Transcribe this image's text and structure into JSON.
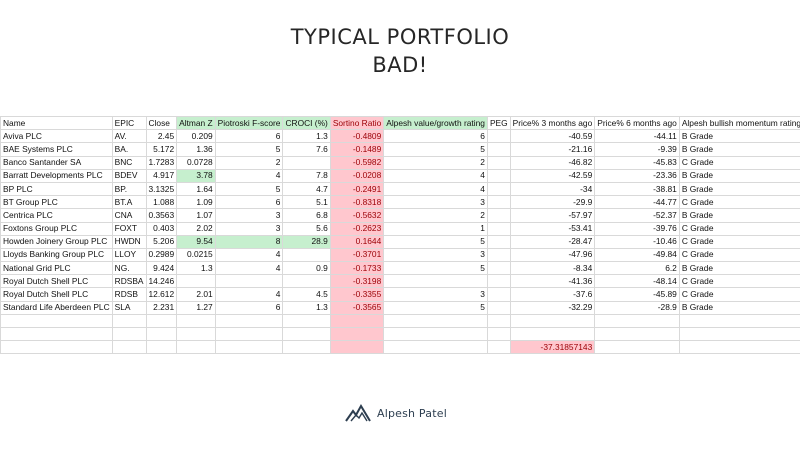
{
  "title": "TYPICAL PORTFOLIO",
  "subtitle": "BAD!",
  "headers": [
    "Name",
    "EPIC",
    "Close",
    "Altman Z",
    "Piotroski F-score",
    "CROCI (%)",
    "Sortino Ratio",
    "Alpesh value/growth rating",
    "PEG",
    "Price% 3 months ago",
    "Price% 6 months ago",
    "Alpesh bullish momentum rating"
  ],
  "rows": [
    [
      "Aviva PLC",
      "AV.",
      "2.45",
      "0.209",
      "6",
      "1.3",
      "-0.4809",
      "6",
      "",
      "-40.59",
      "-44.11",
      "B Grade"
    ],
    [
      "BAE Systems PLC",
      "BA.",
      "5.172",
      "1.36",
      "5",
      "7.6",
      "-0.1489",
      "5",
      "",
      "-21.16",
      "-9.39",
      "B Grade"
    ],
    [
      "Banco Santander SA",
      "BNC",
      "1.7283",
      "0.0728",
      "2",
      "",
      "-0.5982",
      "2",
      "",
      "-46.82",
      "-45.83",
      "C Grade"
    ],
    [
      "Barratt Developments PLC",
      "BDEV",
      "4.917",
      "3.78",
      "4",
      "7.8",
      "-0.0208",
      "4",
      "",
      "-42.59",
      "-23.36",
      "B Grade"
    ],
    [
      "BP PLC",
      "BP.",
      "3.1325",
      "1.64",
      "5",
      "4.7",
      "-0.2491",
      "4",
      "",
      "-34",
      "-38.81",
      "B Grade"
    ],
    [
      "BT Group PLC",
      "BT.A",
      "1.088",
      "1.09",
      "6",
      "5.1",
      "-0.8318",
      "3",
      "",
      "-29.9",
      "-44.77",
      "C Grade"
    ],
    [
      "Centrica PLC",
      "CNA",
      "0.3563",
      "1.07",
      "3",
      "6.8",
      "-0.5632",
      "2",
      "",
      "-57.97",
      "-52.37",
      "B Grade"
    ],
    [
      "Foxtons Group PLC",
      "FOXT",
      "0.403",
      "2.02",
      "3",
      "5.6",
      "-0.2623",
      "1",
      "",
      "-53.41",
      "-39.76",
      "C Grade"
    ],
    [
      "Howden Joinery Group PLC",
      "HWDN",
      "5.206",
      "9.54",
      "8",
      "28.9",
      "0.1644",
      "5",
      "",
      "-28.47",
      "-10.46",
      "C Grade"
    ],
    [
      "Lloyds Banking Group PLC",
      "LLOY",
      "0.2989",
      "0.0215",
      "4",
      "",
      "-0.3701",
      "3",
      "",
      "-47.96",
      "-49.84",
      "C Grade"
    ],
    [
      "National Grid PLC",
      "NG.",
      "9.424",
      "1.3",
      "4",
      "0.9",
      "-0.1733",
      "5",
      "",
      "-8.34",
      "6.2",
      "B Grade"
    ],
    [
      "Royal Dutch Shell PLC",
      "RDSBA",
      "14.246",
      "",
      "",
      "",
      "-0.3198",
      "",
      "",
      "-41.36",
      "-48.14",
      "C Grade"
    ],
    [
      "Royal Dutch Shell PLC",
      "RDSB",
      "12.612",
      "2.01",
      "4",
      "4.5",
      "-0.3355",
      "3",
      "",
      "-37.6",
      "-45.89",
      "C Grade"
    ],
    [
      "Standard Life Aberdeen PLC",
      "SLA",
      "2.231",
      "1.27",
      "6",
      "1.3",
      "-0.3565",
      "5",
      "",
      "-32.29",
      "-28.9",
      "B Grade"
    ]
  ],
  "green_header_cols": [
    3,
    4,
    5,
    7
  ],
  "red_header_cols": [
    6
  ],
  "green_cells": [
    [
      3,
      3
    ],
    [
      8,
      3
    ],
    [
      8,
      4
    ],
    [
      8,
      5
    ]
  ],
  "summary_value": "-37.31857143",
  "logo_text": "Alpesh Patel"
}
